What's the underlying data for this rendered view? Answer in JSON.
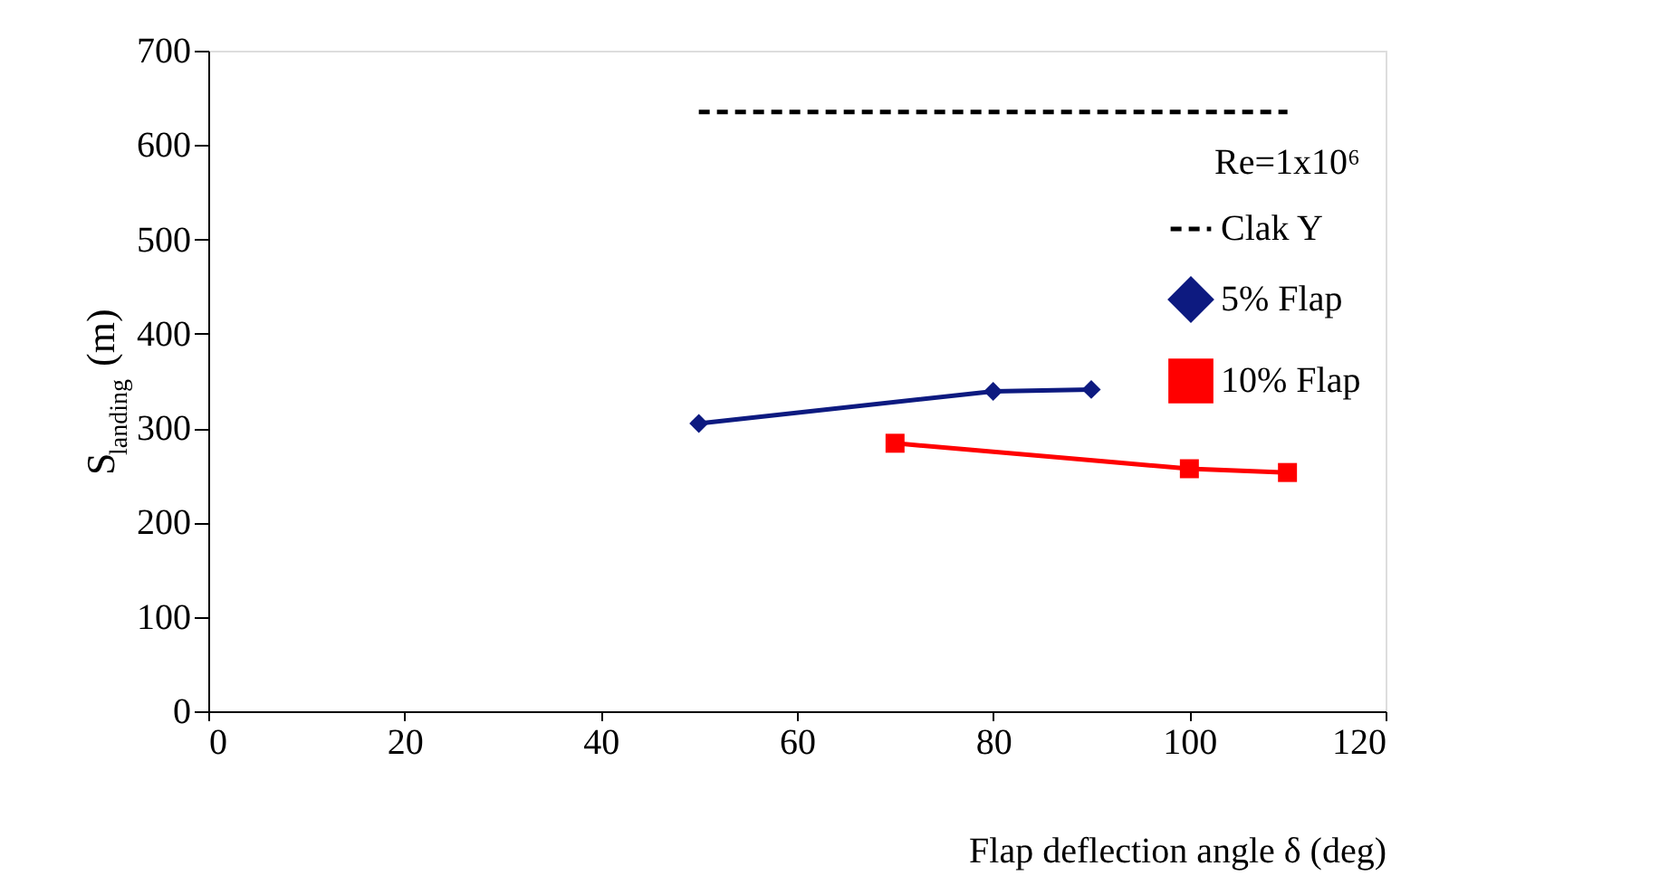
{
  "chart_data": {
    "type": "line",
    "xlabel": "Flap deflection angle δ (deg)",
    "ylabel": "S$_{landing}$ (m)",
    "legend_title": "Re=1x10⁶",
    "legend": "top right",
    "grid": false,
    "xlim": [
      0,
      120
    ],
    "xticks": [
      0,
      20,
      40,
      60,
      80,
      100,
      120
    ],
    "ylim": [
      0,
      700
    ],
    "yticks": [
      0,
      100,
      200,
      300,
      400,
      500,
      600,
      700
    ],
    "series": [
      {
        "name": "Clak Y",
        "color": "#000000",
        "line_style": "dashed",
        "marker": "none",
        "x": [
          50,
          110
        ],
        "values": [
          635,
          635
        ]
      },
      {
        "name": "5% Flap",
        "color": "#0d1a80",
        "line_style": "solid",
        "marker": "diamond",
        "x": [
          50,
          80,
          90
        ],
        "values": [
          305,
          339,
          341
        ]
      },
      {
        "name": "10% Flap",
        "color": "#ff0000",
        "line_style": "solid",
        "marker": "square",
        "x": [
          70,
          100,
          110
        ],
        "values": [
          284,
          257,
          253
        ]
      }
    ]
  }
}
